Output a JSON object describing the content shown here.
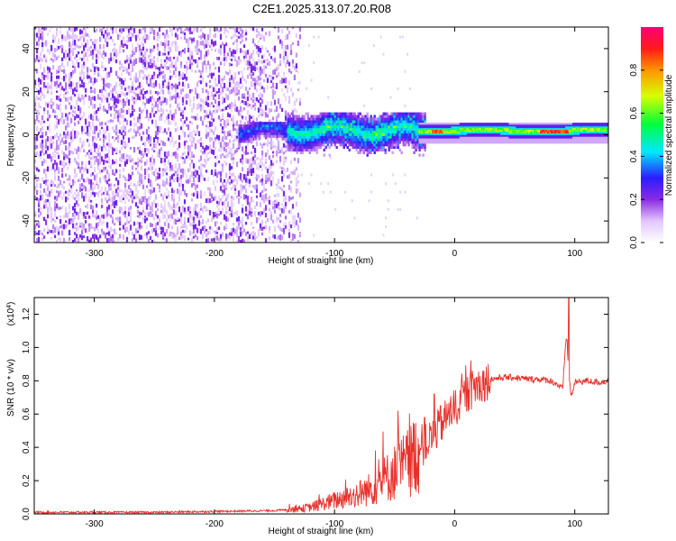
{
  "title": "C2E1.2025.313.07.20.R08",
  "colors": {
    "snr_line": "#e8302a"
  },
  "chart_data": [
    {
      "type": "heatmap",
      "xlabel": "Height of straight line (km)",
      "ylabel": "Frequency (Hz)",
      "xlim": [
        -350,
        128
      ],
      "ylim": [
        -50,
        50
      ],
      "x_ticks": [
        -300,
        -200,
        -100,
        0,
        100
      ],
      "x_tick_labels": [
        "-300",
        "-200",
        "-100",
        "0",
        "100"
      ],
      "y_ticks": [
        -40,
        -20,
        0,
        20,
        40
      ],
      "y_tick_labels": [
        "-40",
        "-20",
        "0",
        "20",
        "40"
      ],
      "colorbar": {
        "label": "Normalized spectral amplitude",
        "range": [
          0,
          1
        ],
        "ticks": [
          0,
          0.2,
          0.4,
          0.6,
          0.8
        ],
        "tick_labels": [
          "0.0",
          "0.2",
          "0.4",
          "0.6",
          "0.8"
        ],
        "colormap": "rainbow (white, violet, blue, cyan, green, yellow, orange, red, magenta)"
      },
      "regions": [
        {
          "x_range": [
            -350,
            -130
          ],
          "freq_range": [
            -50,
            50
          ],
          "amplitude": "0.05-0.2",
          "pattern": "noise"
        },
        {
          "x_range": [
            -130,
            -30
          ],
          "freq_range": [
            -10,
            10
          ],
          "amplitude": "0.2-0.5",
          "pattern": "broad signal band"
        },
        {
          "x_range": [
            -30,
            128
          ],
          "freq_range": [
            -2,
            3
          ],
          "amplitude": "0.5-0.9",
          "pattern": "narrow tone near 1-2 Hz"
        }
      ],
      "grid": false
    },
    {
      "type": "line",
      "xlabel": "Height of straight line (km)",
      "ylabel": "SNR (10 * v/v)",
      "scale_label": "(x10",
      "scale_exp": "4",
      "xlim": [
        -350,
        128
      ],
      "ylim": [
        0,
        1.3
      ],
      "x_ticks": [
        -300,
        -200,
        -100,
        0,
        100
      ],
      "x_tick_labels": [
        "-300",
        "-200",
        "-100",
        "0",
        "100"
      ],
      "y_ticks": [
        0,
        0.2,
        0.4,
        0.6,
        0.8,
        1.0,
        1.2
      ],
      "y_tick_labels": [
        "0.0",
        "0.2",
        "0.4",
        "0.6",
        "0.8",
        "1.0",
        "1.2"
      ],
      "series": [
        {
          "x": [
            -350,
            -300,
            -250,
            -200,
            -150,
            -130,
            -120,
            -110,
            -100,
            -90,
            -80,
            -70,
            -60,
            -50,
            -40,
            -30,
            -20,
            -15,
            -10,
            -5,
            0,
            5,
            10,
            20,
            30,
            40,
            50,
            60,
            70,
            80,
            85,
            90,
            93,
            95,
            97,
            100,
            110,
            120,
            128
          ],
          "y": [
            0.01,
            0.01,
            0.01,
            0.015,
            0.02,
            0.03,
            0.04,
            0.06,
            0.08,
            0.1,
            0.12,
            0.15,
            0.2,
            0.25,
            0.3,
            0.38,
            0.45,
            0.5,
            0.55,
            0.6,
            0.63,
            0.68,
            0.72,
            0.78,
            0.81,
            0.82,
            0.82,
            0.81,
            0.81,
            0.8,
            0.78,
            0.75,
            1.1,
            0.85,
            0.7,
            0.79,
            0.8,
            0.79,
            0.8
          ]
        }
      ],
      "spikes": [
        {
          "x": 95,
          "y": 1.3
        },
        {
          "x": 93,
          "y": 1.05
        },
        {
          "x": -17,
          "y": 0.72
        },
        {
          "x": -12,
          "y": 0.65
        },
        {
          "x": -25,
          "y": 0.58
        }
      ],
      "grid": false
    }
  ]
}
